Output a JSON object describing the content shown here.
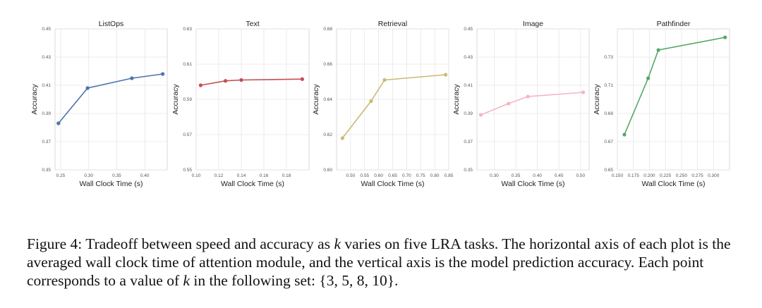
{
  "chart_data": [
    {
      "type": "line",
      "title": "ListOps",
      "xlabel": "Wall Clock Time (s)",
      "ylabel": "Accuracy",
      "color": "#4c72b0",
      "xlim": [
        0.24,
        0.44
      ],
      "ylim": [
        0.35,
        0.45
      ],
      "xticks": [
        0.25,
        0.3,
        0.35,
        0.4
      ],
      "xtick_labels": [
        "0.25",
        "0.30",
        "0.35",
        "0.40"
      ],
      "yticks": [
        0.35,
        0.37,
        0.39,
        0.41,
        0.43,
        0.45
      ],
      "ytick_labels": [
        "0.35",
        "0.37",
        "0.39",
        "0.41",
        "0.43",
        "0.45"
      ],
      "grid": true,
      "x": [
        0.246,
        0.298,
        0.377,
        0.432
      ],
      "y": [
        0.383,
        0.408,
        0.415,
        0.418
      ]
    },
    {
      "type": "line",
      "title": "Text",
      "xlabel": "Wall Clock Time (s)",
      "ylabel": "Accuracy",
      "color": "#c44e52",
      "xlim": [
        0.1,
        0.2
      ],
      "ylim": [
        0.55,
        0.63
      ],
      "xticks": [
        0.1,
        0.12,
        0.14,
        0.16,
        0.18
      ],
      "xtick_labels": [
        "0.10",
        "0.12",
        "0.14",
        "0.16",
        "0.18"
      ],
      "yticks": [
        0.55,
        0.57,
        0.59,
        0.61,
        0.63
      ],
      "ytick_labels": [
        "0.55",
        "0.57",
        "0.59",
        "0.61",
        "0.63"
      ],
      "grid": true,
      "x": [
        0.104,
        0.126,
        0.14,
        0.194
      ],
      "y": [
        0.598,
        0.6005,
        0.601,
        0.6015
      ]
    },
    {
      "type": "line",
      "title": "Retrieval",
      "xlabel": "Wall Clock Time (s)",
      "ylabel": "Accuracy",
      "color": "#ccb974",
      "xlim": [
        0.45,
        0.85
      ],
      "ylim": [
        0.6,
        0.68
      ],
      "xticks": [
        0.5,
        0.55,
        0.6,
        0.65,
        0.7,
        0.75,
        0.8,
        0.85
      ],
      "xtick_labels": [
        "0.50",
        "0.55",
        "0.60",
        "0.65",
        "0.70",
        "0.75",
        "0.80",
        "0.85"
      ],
      "yticks": [
        0.6,
        0.62,
        0.64,
        0.66,
        0.68
      ],
      "ytick_labels": [
        "0.60",
        "0.62",
        "0.64",
        "0.66",
        "0.68"
      ],
      "grid": true,
      "x": [
        0.471,
        0.573,
        0.621,
        0.839
      ],
      "y": [
        0.618,
        0.639,
        0.651,
        0.654
      ]
    },
    {
      "type": "line",
      "title": "Image",
      "xlabel": "Wall Clock Time (s)",
      "ylabel": "Accuracy",
      "color": "#f4b6c2",
      "xlim": [
        0.26,
        0.52
      ],
      "ylim": [
        0.35,
        0.45
      ],
      "xticks": [
        0.3,
        0.35,
        0.4,
        0.45,
        0.5
      ],
      "xtick_labels": [
        "0.30",
        "0.35",
        "0.40",
        "0.45",
        "0.50"
      ],
      "yticks": [
        0.35,
        0.37,
        0.39,
        0.41,
        0.43,
        0.45
      ],
      "ytick_labels": [
        "0.35",
        "0.37",
        "0.39",
        "0.41",
        "0.43",
        "0.45"
      ],
      "grid": true,
      "x": [
        0.269,
        0.333,
        0.378,
        0.506
      ],
      "y": [
        0.389,
        0.397,
        0.402,
        0.405
      ]
    },
    {
      "type": "line",
      "title": "Pathfinder",
      "xlabel": "Wall Clock Time (s)",
      "ylabel": "Accuracy",
      "color": "#55a868",
      "xlim": [
        0.15,
        0.325
      ],
      "ylim": [
        0.65,
        0.75
      ],
      "xticks": [
        0.15,
        0.175,
        0.2,
        0.225,
        0.25,
        0.275,
        0.3
      ],
      "xtick_labels": [
        "0.150",
        "0.175",
        "0.200",
        "0.225",
        "0.250",
        "0.275",
        "0.300"
      ],
      "yticks": [
        0.65,
        0.67,
        0.69,
        0.71,
        0.73
      ],
      "ytick_labels": [
        "0.65",
        "0.67",
        "0.69",
        "0.71",
        "0.73"
      ],
      "grid": true,
      "x": [
        0.161,
        0.198,
        0.214,
        0.318
      ],
      "y": [
        0.675,
        0.715,
        0.735,
        0.744
      ]
    }
  ],
  "caption": {
    "part1": "Figure 4: Tradeoff between speed and accuracy as ",
    "k1": "k",
    "part2": " varies on five LRA tasks. The horizontal axis of each plot is the averaged wall clock time of attention module, and the vertical axis is the model prediction accuracy. Each point corresponds to a value of ",
    "k2": "k",
    "part3": " in the following set: {3, 5, 8, 10}."
  }
}
